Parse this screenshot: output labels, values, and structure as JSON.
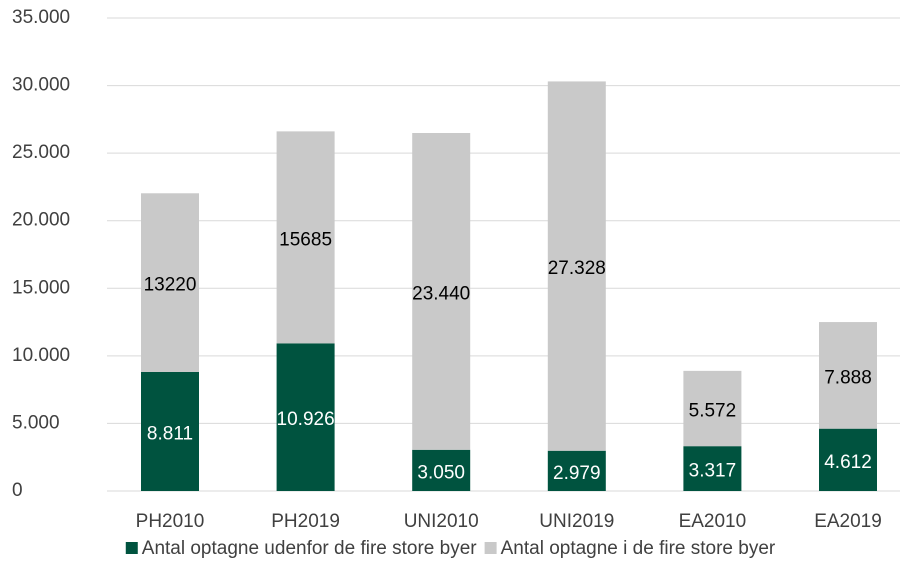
{
  "chart_data": {
    "type": "stacked_bar",
    "categories": [
      "PH2010",
      "PH2019",
      "UNI2010",
      "UNI2019",
      "EA2010",
      "EA2019"
    ],
    "series": [
      {
        "name": "Antal optagne udenfor de fire store byer",
        "color": "#00533f",
        "values": [
          8811,
          10926,
          3050,
          2979,
          3317,
          4612
        ],
        "value_labels": [
          "8.811",
          "10.926",
          "3.050",
          "2.979",
          "3.317",
          "4.612"
        ]
      },
      {
        "name": "Antal optagne i de fire store byer",
        "color": "#c9c9c9",
        "values": [
          13220,
          15685,
          23440,
          27328,
          5572,
          7888
        ],
        "value_labels": [
          "13220",
          "15685",
          "23.440",
          "27.328",
          "5.572",
          "7.888"
        ]
      }
    ],
    "ylim": [
      0,
      35000
    ],
    "yticks": [
      0,
      {
        "value": 5000,
        "label": "5.000"
      },
      {
        "value": 10000,
        "label": "10.000"
      },
      {
        "value": 15000,
        "label": "15.000"
      },
      {
        "value": 20000,
        "label": "20.000"
      },
      {
        "value": 25000,
        "label": "25.000"
      },
      {
        "value": 30000,
        "label": "30.000"
      },
      {
        "value": 35000,
        "label": "35.000"
      }
    ],
    "grid": true,
    "legend": "bottom"
  }
}
